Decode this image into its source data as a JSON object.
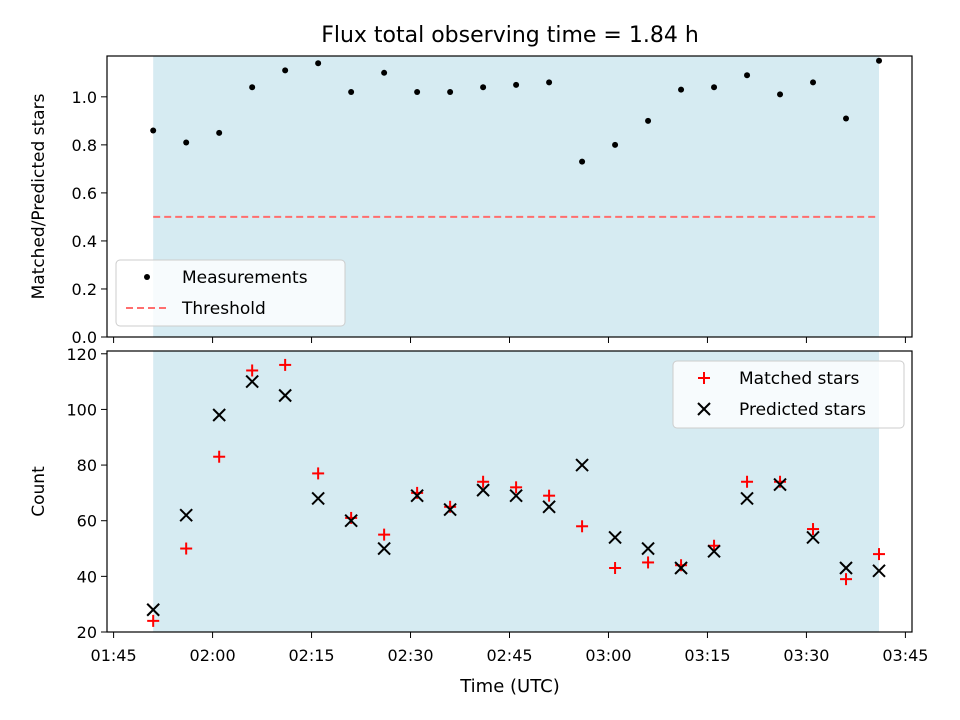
{
  "figure": {
    "title": "Flux total observing time = 1.84 h",
    "xlabel": "Time (UTC)"
  },
  "colors": {
    "shade": "#add8e6",
    "measurement": "#000000",
    "threshold": "#ff6e6e",
    "matched": "#ff0000",
    "predicted": "#000000"
  },
  "chart_data": [
    {
      "type": "scatter",
      "panel": "top",
      "ylabel": "Matched/Predicted stars",
      "xlim": [
        "01:44",
        "03:46"
      ],
      "ylim": [
        0,
        1.17
      ],
      "xticks": [
        "01:45",
        "02:00",
        "02:15",
        "02:30",
        "02:45",
        "03:00",
        "03:15",
        "03:30",
        "03:45"
      ],
      "yticks": [
        "0.0",
        "0.2",
        "0.4",
        "0.6",
        "0.8",
        "1.0"
      ],
      "shaded_range": [
        "01:51",
        "03:41"
      ],
      "threshold": 0.5,
      "legend_position": "lower left",
      "series": [
        {
          "name": "Measurements",
          "marker": "dot",
          "x": [
            "01:51",
            "01:56",
            "02:01",
            "02:06",
            "02:11",
            "02:16",
            "02:21",
            "02:26",
            "02:31",
            "02:36",
            "02:41",
            "02:46",
            "02:51",
            "02:56",
            "03:01",
            "03:06",
            "03:11",
            "03:16",
            "03:21",
            "03:26",
            "03:31",
            "03:36",
            "03:41"
          ],
          "y": [
            0.86,
            0.81,
            0.85,
            1.04,
            1.11,
            1.14,
            1.02,
            1.1,
            1.02,
            1.02,
            1.04,
            1.05,
            1.06,
            0.73,
            0.8,
            0.9,
            1.03,
            1.04,
            1.09,
            1.01,
            1.06,
            0.91,
            1.15
          ]
        },
        {
          "name": "Threshold",
          "marker": "dashed-line",
          "x": [
            "01:51",
            "03:41"
          ],
          "y": [
            0.5,
            0.5
          ]
        }
      ]
    },
    {
      "type": "scatter",
      "panel": "bottom",
      "ylabel": "Count",
      "xlabel": "Time (UTC)",
      "xlim": [
        "01:44",
        "03:46"
      ],
      "ylim": [
        20,
        121
      ],
      "xticks": [
        "01:45",
        "02:00",
        "02:15",
        "02:30",
        "02:45",
        "03:00",
        "03:15",
        "03:30",
        "03:45"
      ],
      "yticks": [
        "20",
        "40",
        "60",
        "80",
        "100",
        "120"
      ],
      "shaded_range": [
        "01:51",
        "03:41"
      ],
      "legend_position": "upper right",
      "series": [
        {
          "name": "Matched stars",
          "marker": "plus",
          "x": [
            "01:51",
            "01:56",
            "02:01",
            "02:06",
            "02:11",
            "02:16",
            "02:21",
            "02:26",
            "02:31",
            "02:36",
            "02:41",
            "02:46",
            "02:51",
            "02:56",
            "03:01",
            "03:06",
            "03:11",
            "03:16",
            "03:21",
            "03:26",
            "03:31",
            "03:36",
            "03:41"
          ],
          "y": [
            24,
            50,
            83,
            114,
            116,
            77,
            61,
            55,
            70,
            65,
            74,
            72,
            69,
            58,
            43,
            45,
            44,
            51,
            74,
            74,
            57,
            39,
            48
          ]
        },
        {
          "name": "Predicted stars",
          "marker": "x",
          "x": [
            "01:51",
            "01:56",
            "02:01",
            "02:06",
            "02:11",
            "02:16",
            "02:21",
            "02:26",
            "02:31",
            "02:36",
            "02:41",
            "02:46",
            "02:51",
            "02:56",
            "03:01",
            "03:06",
            "03:11",
            "03:16",
            "03:21",
            "03:26",
            "03:31",
            "03:36",
            "03:41"
          ],
          "y": [
            28,
            62,
            98,
            110,
            105,
            68,
            60,
            50,
            69,
            64,
            71,
            69,
            65,
            80,
            54,
            50,
            43,
            49,
            68,
            73,
            54,
            43,
            42
          ]
        }
      ]
    }
  ]
}
